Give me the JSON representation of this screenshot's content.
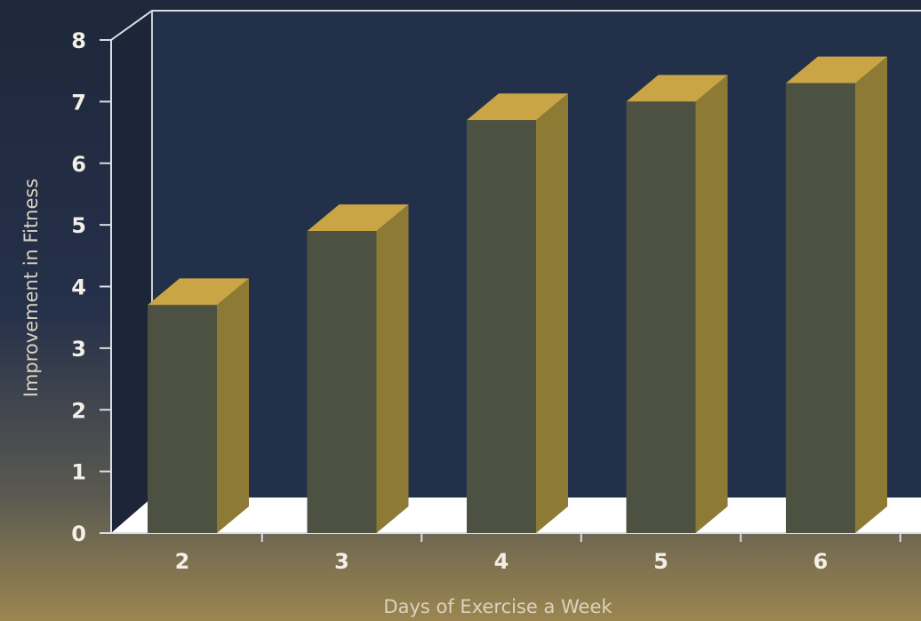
{
  "chart_data": {
    "type": "bar",
    "style": "3d",
    "categories": [
      "2",
      "3",
      "4",
      "5",
      "6"
    ],
    "values": [
      3.7,
      4.9,
      6.7,
      7.0,
      7.3
    ],
    "xlabel": "Days of Exercise a Week",
    "ylabel": "Improvement in Fitness",
    "ylim": [
      0,
      8
    ],
    "yticks": [
      "0",
      "1",
      "2",
      "3",
      "4",
      "5",
      "6",
      "7",
      "8"
    ],
    "grid": false,
    "legend": "none"
  },
  "colors": {
    "background_top": "#1f2a3e",
    "background_bottom": "#9c8650",
    "plot_panel": "#23304a",
    "floor": "#ffffff",
    "bar_front": "#4d5141",
    "bar_side": "#8d7a35",
    "bar_top": "#c9a545",
    "axis_line": "#d9dde6"
  }
}
